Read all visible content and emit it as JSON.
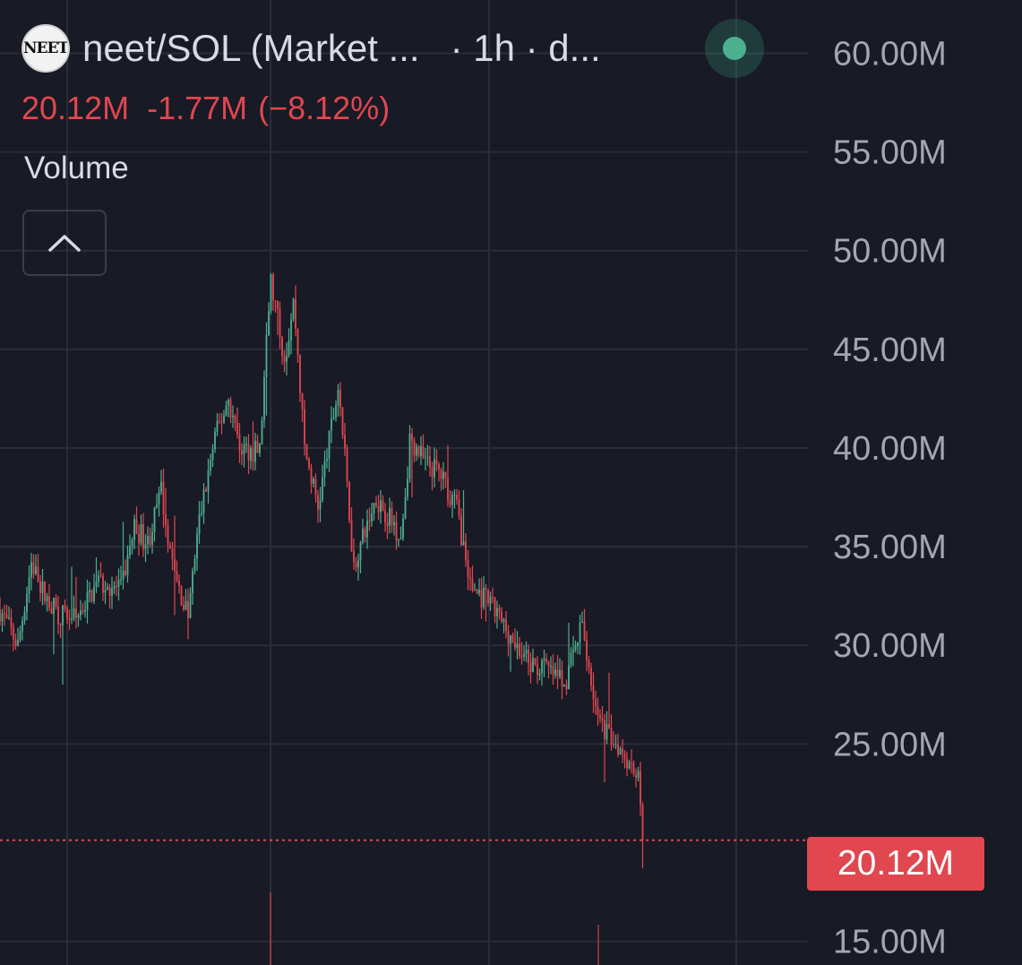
{
  "header": {
    "logo_text": "NEET",
    "symbol": "neet/SOL (Market ...",
    "interval_meta": "· 1h · d...",
    "status": "live"
  },
  "price_line": {
    "value": "20.12M",
    "change": "-1.77M",
    "change_pct": "(−8.12%)"
  },
  "volume_label": "Volume",
  "colors": {
    "background": "#181a25",
    "grid": "#2a2d39",
    "up": "#4caf8e",
    "down": "#e0474f",
    "axis_text": "#a3a6b3",
    "status": "#4caf8e"
  },
  "chart_data": {
    "type": "candlestick",
    "interval": "1h",
    "y_tick_labels": [
      "60.00M",
      "55.00M",
      "50.00M",
      "45.00M",
      "40.00M",
      "35.00M",
      "30.00M",
      "25.00M",
      "15.00M"
    ],
    "y_ticks": [
      60,
      55,
      50,
      45,
      40,
      35,
      30,
      25,
      15
    ],
    "y_unit": "M",
    "ylim": [
      13.8,
      62.7
    ],
    "current_price": 20.12,
    "current_price_label": "20.12M",
    "grid": true,
    "close_path": [
      [
        0,
        31.8
      ],
      [
        20,
        30.0
      ],
      [
        35,
        34.2
      ],
      [
        50,
        32.5
      ],
      [
        65,
        31.6
      ],
      [
        85,
        31.4
      ],
      [
        110,
        33.2
      ],
      [
        135,
        32.8
      ],
      [
        150,
        36.0
      ],
      [
        165,
        35.2
      ],
      [
        180,
        37.8
      ],
      [
        195,
        33.5
      ],
      [
        210,
        31.5
      ],
      [
        222,
        36.2
      ],
      [
        240,
        40.5
      ],
      [
        255,
        42.5
      ],
      [
        268,
        40.0
      ],
      [
        290,
        39.8
      ],
      [
        302,
        48.5
      ],
      [
        318,
        44.5
      ],
      [
        328,
        47.5
      ],
      [
        340,
        40.0
      ],
      [
        355,
        37.0
      ],
      [
        378,
        43.2
      ],
      [
        395,
        34.0
      ],
      [
        420,
        37.5
      ],
      [
        448,
        35.5
      ],
      [
        458,
        40.5
      ],
      [
        475,
        39.2
      ],
      [
        490,
        38.8
      ],
      [
        510,
        37.0
      ],
      [
        525,
        33.0
      ],
      [
        548,
        32.0
      ],
      [
        570,
        30.5
      ],
      [
        590,
        29.0
      ],
      [
        610,
        28.8
      ],
      [
        630,
        28.0
      ],
      [
        650,
        31.0
      ],
      [
        668,
        26.0
      ],
      [
        690,
        25.0
      ],
      [
        705,
        24.0
      ],
      [
        712,
        23.5
      ],
      [
        718,
        20.12
      ]
    ],
    "volume_spikes": [
      {
        "x": 302,
        "relative": 0.9
      },
      {
        "x": 668,
        "relative": 0.5
      }
    ]
  }
}
